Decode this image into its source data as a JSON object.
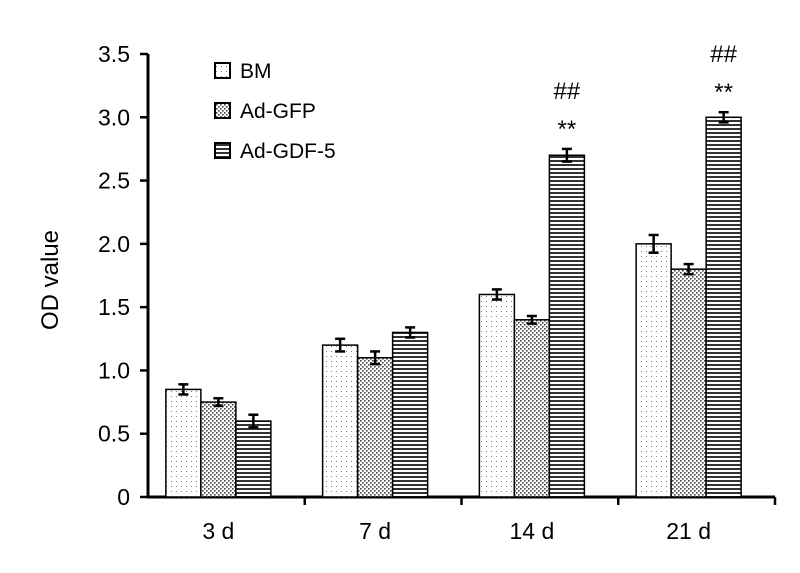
{
  "chart_data": {
    "type": "bar",
    "title": "",
    "xlabel": "",
    "ylabel": "OD value",
    "ylim": [
      0,
      3.5
    ],
    "yticks": [
      "0",
      "0.5",
      "1.0",
      "1.5",
      "2.0",
      "2.5",
      "3.0",
      "3.5"
    ],
    "categories": [
      "3 d",
      "7 d",
      "14 d",
      "21 d"
    ],
    "legend_position": "top-left",
    "series": [
      {
        "name": "BM",
        "pattern": "dots-sparse",
        "values": [
          0.85,
          1.2,
          1.6,
          2.0
        ],
        "errors": [
          0.04,
          0.05,
          0.04,
          0.07
        ]
      },
      {
        "name": "Ad-GFP",
        "pattern": "dots-dense",
        "values": [
          0.75,
          1.1,
          1.4,
          1.8
        ],
        "errors": [
          0.03,
          0.05,
          0.03,
          0.04
        ]
      },
      {
        "name": "Ad-GDF-5",
        "pattern": "horizontal-lines",
        "values": [
          0.6,
          1.3,
          2.7,
          3.0
        ],
        "errors": [
          0.05,
          0.04,
          0.05,
          0.04
        ]
      }
    ],
    "annotations": [
      {
        "series": "Ad-GDF-5",
        "category": "14 d",
        "lines": [
          "##",
          "**"
        ]
      },
      {
        "series": "Ad-GDF-5",
        "category": "21 d",
        "lines": [
          "##",
          "**"
        ]
      }
    ]
  }
}
